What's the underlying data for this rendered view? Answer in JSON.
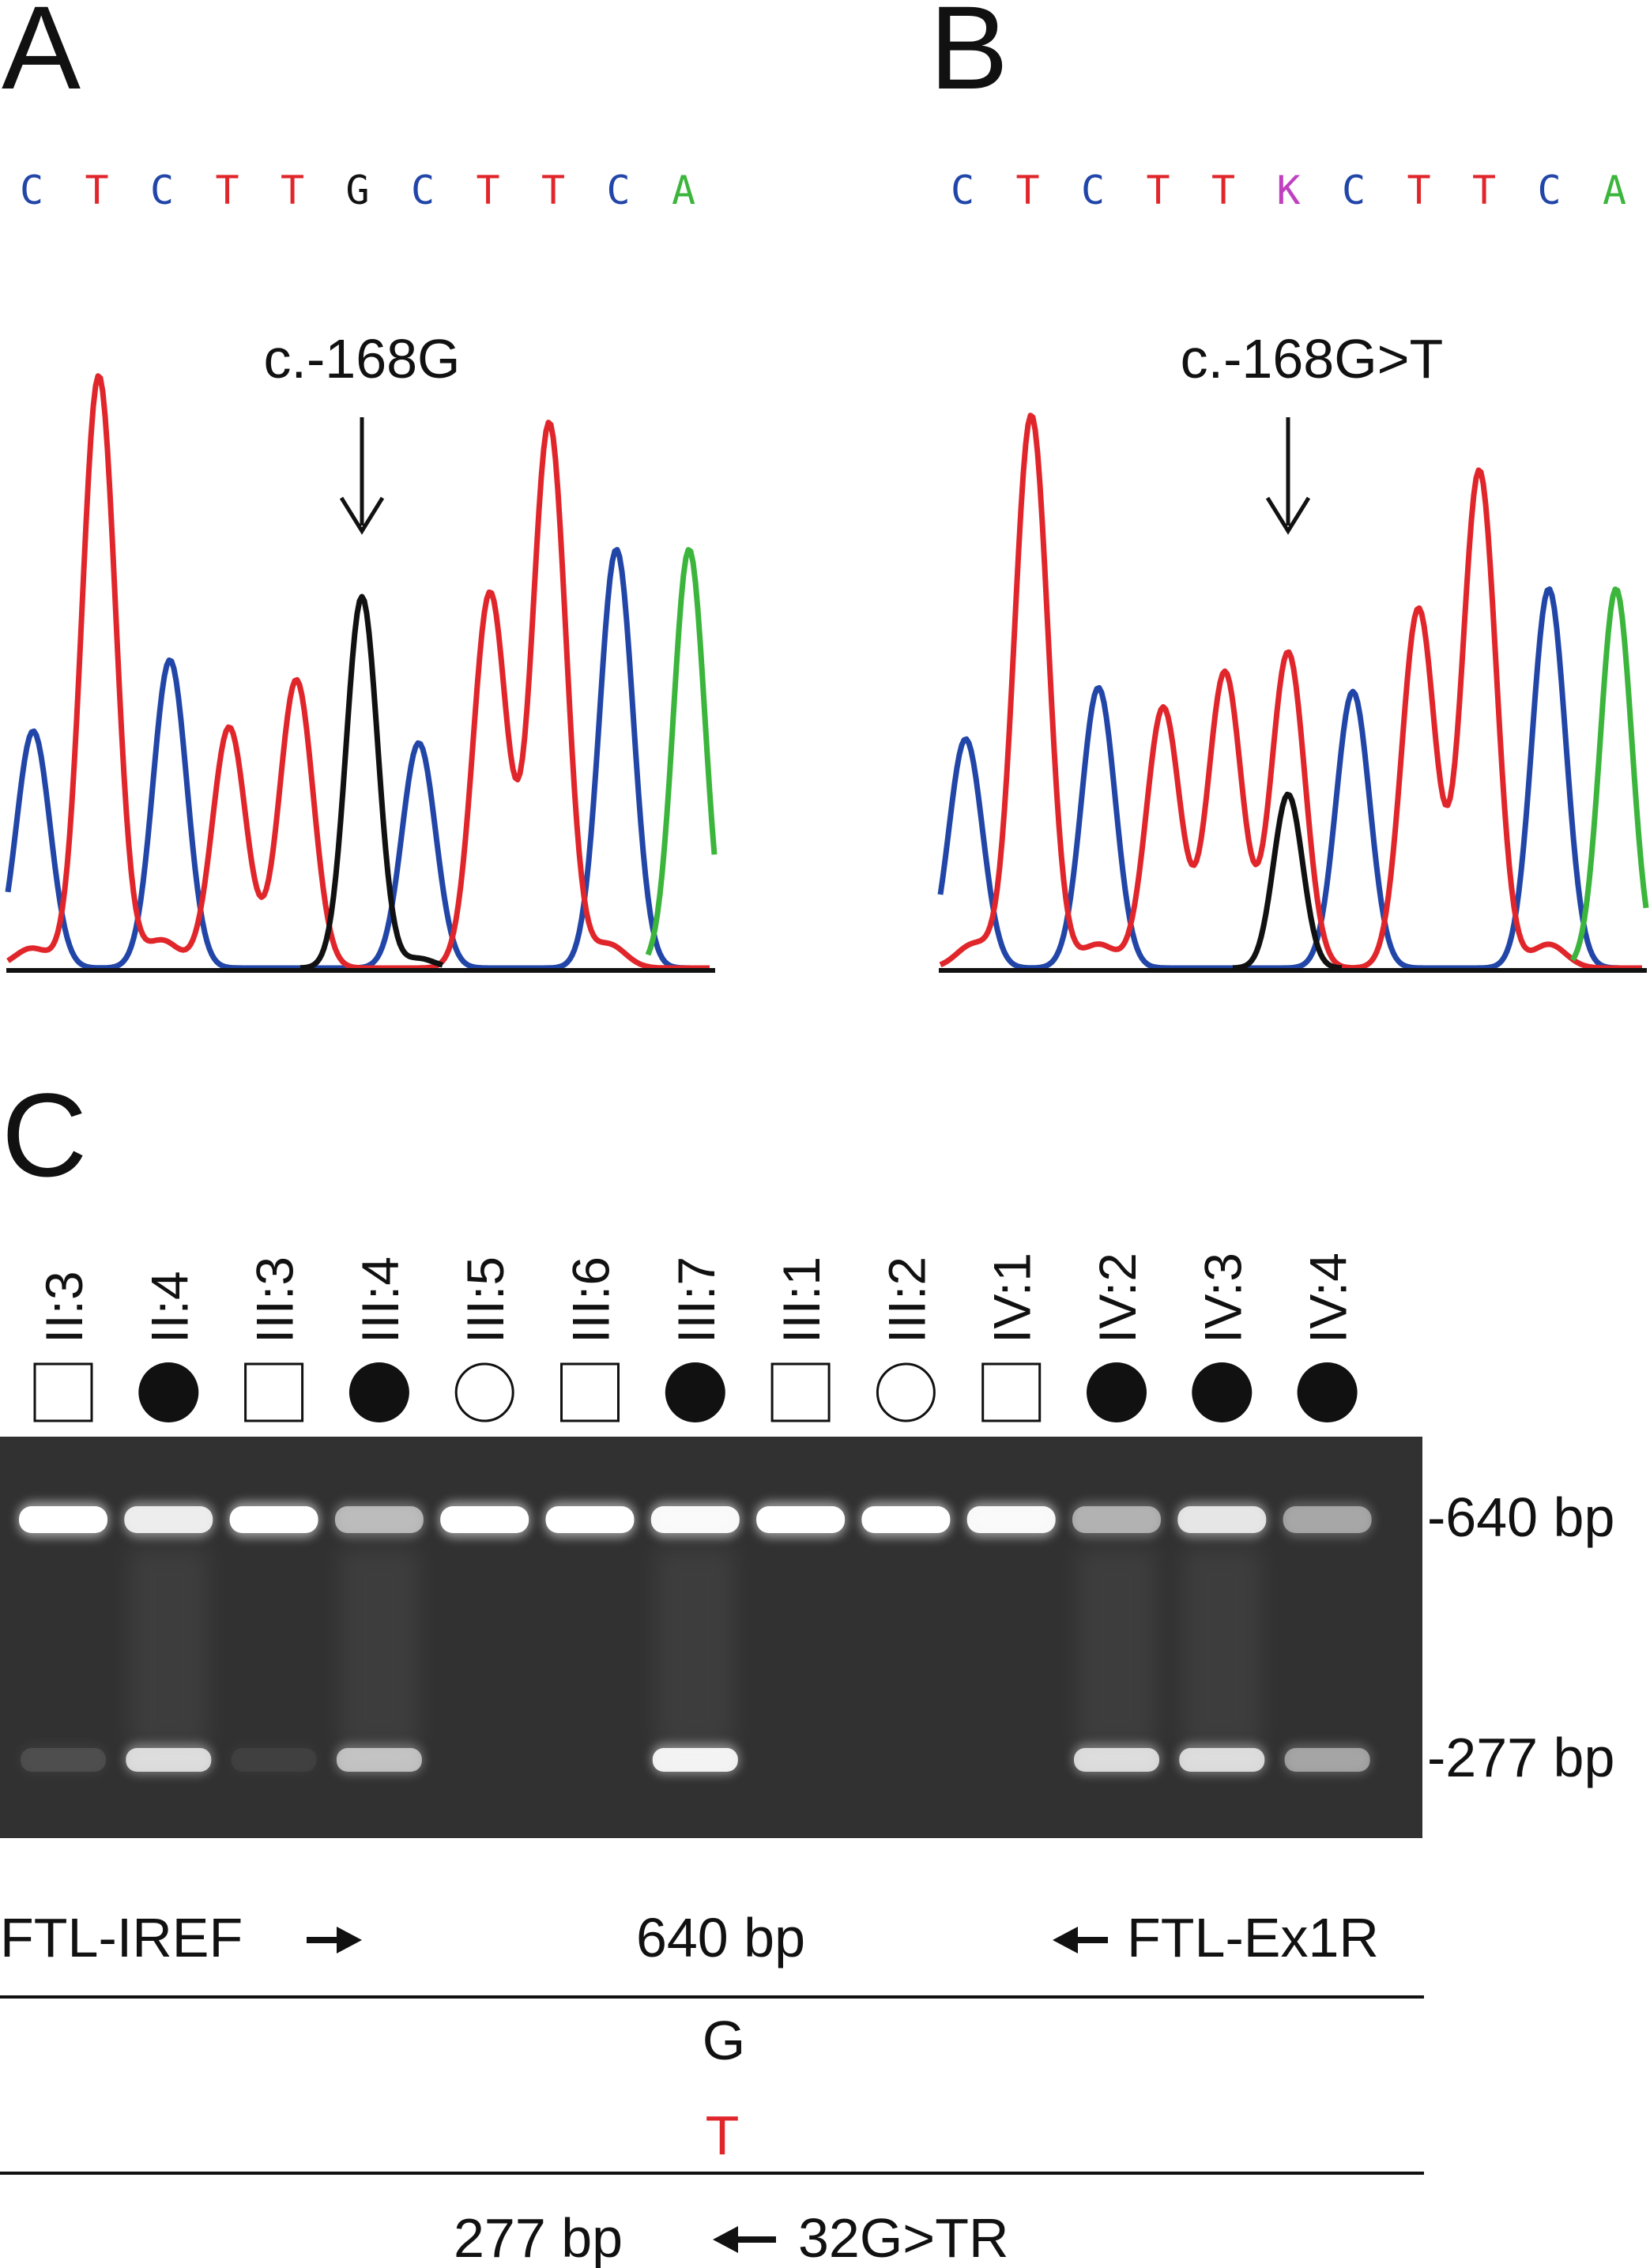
{
  "panels": {
    "a": {
      "letter": "A",
      "sequence": [
        {
          "base": "C",
          "color": "#2246a8"
        },
        {
          "base": "T",
          "color": "#e0262b"
        },
        {
          "base": "C",
          "color": "#2246a8"
        },
        {
          "base": "T",
          "color": "#e0262b"
        },
        {
          "base": "T",
          "color": "#e0262b"
        },
        {
          "base": "G",
          "color": "#111111"
        },
        {
          "base": "C",
          "color": "#2246a8"
        },
        {
          "base": "T",
          "color": "#e0262b"
        },
        {
          "base": "T",
          "color": "#e0262b"
        },
        {
          "base": "C",
          "color": "#2246a8"
        },
        {
          "base": "A",
          "color": "#3bb53b"
        }
      ],
      "annotation": "c.-168G"
    },
    "b": {
      "letter": "B",
      "sequence": [
        {
          "base": "C",
          "color": "#2246a8"
        },
        {
          "base": "T",
          "color": "#e0262b"
        },
        {
          "base": "C",
          "color": "#2246a8"
        },
        {
          "base": "T",
          "color": "#e0262b"
        },
        {
          "base": "T",
          "color": "#e0262b"
        },
        {
          "base": "K",
          "color": "#c040c0"
        },
        {
          "base": "C",
          "color": "#2246a8"
        },
        {
          "base": "T",
          "color": "#e0262b"
        },
        {
          "base": "T",
          "color": "#e0262b"
        },
        {
          "base": "C",
          "color": "#2246a8"
        },
        {
          "base": "A",
          "color": "#3bb53b"
        }
      ],
      "annotation": "c.-168G>T"
    },
    "c": {
      "letter": "C",
      "lanes": [
        {
          "id": "II:3",
          "symbol": "open-square"
        },
        {
          "id": "II:4",
          "symbol": "filled-circle"
        },
        {
          "id": "III:3",
          "symbol": "open-square"
        },
        {
          "id": "III:4",
          "symbol": "filled-circle"
        },
        {
          "id": "III:5",
          "symbol": "open-circle"
        },
        {
          "id": "III:6",
          "symbol": "open-square"
        },
        {
          "id": "III:7",
          "symbol": "filled-circle"
        },
        {
          "id": "III:1",
          "symbol": "open-square"
        },
        {
          "id": "III:2",
          "symbol": "open-circle"
        },
        {
          "id": "IV:1",
          "symbol": "open-square"
        },
        {
          "id": "IV:2",
          "symbol": "filled-circle"
        },
        {
          "id": "IV:3",
          "symbol": "filled-circle"
        },
        {
          "id": "IV:4",
          "symbol": "filled-circle"
        }
      ],
      "band_640_intensity": [
        1.0,
        0.85,
        1.0,
        0.55,
        1.0,
        1.0,
        0.95,
        1.0,
        1.0,
        0.95,
        0.5,
        0.8,
        0.45
      ],
      "band_277_intensity": [
        0.1,
        0.75,
        0.05,
        0.6,
        0.0,
        0.0,
        0.9,
        0.0,
        0.0,
        0.0,
        0.75,
        0.75,
        0.45
      ],
      "size_markers": [
        "-640 bp",
        "-277 bp"
      ],
      "schematic": {
        "forward_primer": "FTL-IREF",
        "reverse_primer": "FTL-Ex1R",
        "long_product": "640 bp",
        "allele_wt": "G",
        "allele_mut": "T",
        "short_product": "277 bp",
        "mut_primer": "32G>TR"
      }
    }
  },
  "colors": {
    "A": "#3bb53b",
    "C": "#2246a8",
    "G": "#111111",
    "T": "#e0262b",
    "K": "#c040c0",
    "mutant": "#e0262b"
  }
}
